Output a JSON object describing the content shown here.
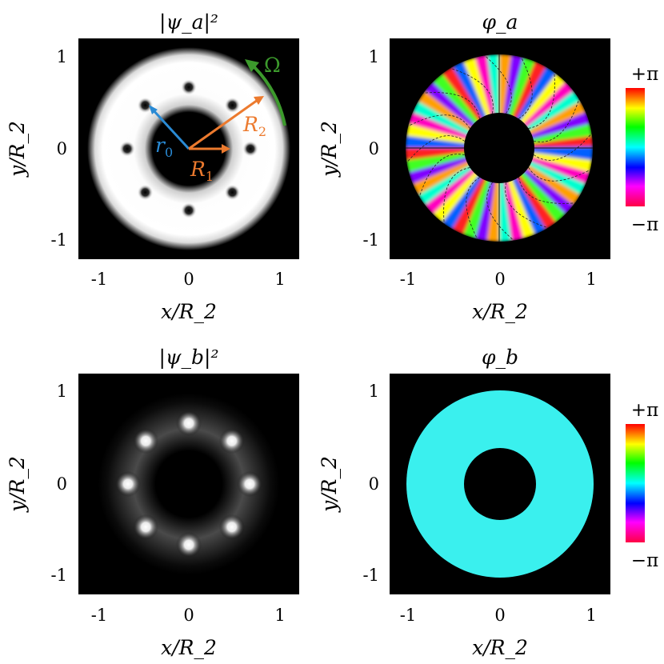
{
  "panels": [
    {
      "id": "psi_a",
      "title": "|ψ_a|²",
      "x_ticks": [
        "-1",
        "0",
        "1"
      ],
      "y_ticks": [
        "1",
        "0",
        "-1"
      ],
      "xlabel": "x/R_2",
      "ylabel": "y/R_2",
      "annotations": {
        "r0": "r_0",
        "R1": "R_1",
        "R2": "R_2",
        "Omega": "Ω"
      }
    },
    {
      "id": "phi_a",
      "title": "φ_a",
      "x_ticks": [
        "-1",
        "0",
        "1"
      ],
      "y_ticks": [
        "1",
        "0",
        "-1"
      ],
      "xlabel": "x/R_2",
      "ylabel": "y/R_2"
    },
    {
      "id": "psi_b",
      "title": "|ψ_b|²",
      "x_ticks": [
        "-1",
        "0",
        "1"
      ],
      "y_ticks": [
        "1",
        "0",
        "-1"
      ],
      "xlabel": "x/R_2",
      "ylabel": "y/R_2"
    },
    {
      "id": "phi_b",
      "title": "φ_b",
      "x_ticks": [
        "-1",
        "0",
        "1"
      ],
      "y_ticks": [
        "1",
        "0",
        "-1"
      ],
      "xlabel": "x/R_2",
      "ylabel": "y/R_2"
    }
  ],
  "colorbar": {
    "top": "+π",
    "bottom": "−π"
  },
  "colors": {
    "background": "#000000",
    "r0_arrow": "#2a8ad4",
    "R_arrows": "#ec7a2e",
    "Omega_arrow": "#3c9a2c",
    "phi_b_fill": "#3af0ee"
  }
}
